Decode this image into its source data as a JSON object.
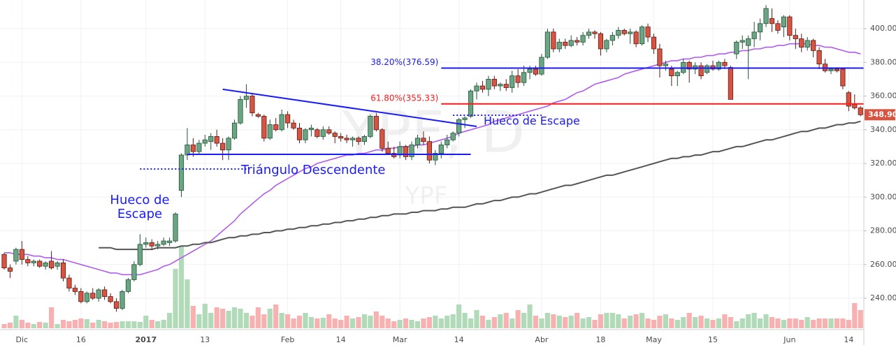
{
  "chart_data": {
    "type": "candlestick",
    "watermark": "YPF, D",
    "watermark_symbol": "YPF",
    "categories": [
      null,
      null,
      null,
      "Dic",
      null,
      null,
      null,
      null,
      null,
      null,
      null,
      null,
      null,
      "16",
      null,
      null,
      null,
      null,
      null,
      null,
      null,
      null,
      null,
      null,
      "2017",
      null,
      null,
      null,
      null,
      null,
      null,
      null,
      null,
      null,
      "13",
      null,
      null,
      null,
      null,
      null,
      null,
      null,
      null,
      null,
      null,
      null,
      null,
      null,
      "Feb",
      null,
      null,
      null,
      null,
      null,
      null,
      null,
      null,
      "14",
      null,
      null,
      null,
      null,
      null,
      null,
      null,
      null,
      null,
      "Mar",
      null,
      null,
      null,
      null,
      null,
      null,
      null,
      null,
      null,
      "14",
      null,
      null,
      null,
      null,
      null,
      null,
      null,
      null,
      null,
      null,
      null,
      null,
      null,
      "Abr",
      null,
      null,
      null,
      null,
      null,
      null,
      null,
      null,
      null,
      "18",
      null,
      null,
      null,
      null,
      null,
      null,
      null,
      null,
      "May",
      null,
      null,
      null,
      null,
      null,
      null,
      null,
      null,
      null,
      "15",
      null,
      null,
      null,
      null,
      null,
      null,
      null,
      null,
      null,
      null,
      null,
      null,
      "Jun",
      null,
      null,
      null,
      null,
      null,
      null,
      null,
      null,
      null,
      "14",
      null,
      null
    ],
    "open": [
      266,
      258,
      262,
      269,
      263,
      261,
      262,
      259,
      262,
      259,
      261,
      252,
      246,
      244,
      238,
      243,
      240,
      245,
      241,
      238,
      234,
      244,
      251,
      260,
      272,
      273,
      271,
      272,
      273,
      274,
      304,
      325,
      331,
      327,
      332,
      333,
      336,
      332,
      328,
      335,
      344,
      358,
      360,
      349,
      348,
      335,
      343,
      340,
      349,
      344,
      341,
      334,
      340,
      340,
      336,
      340,
      338,
      336,
      335,
      334,
      335,
      333,
      336,
      348,
      340,
      329,
      326,
      325,
      330,
      324,
      331,
      335,
      333,
      322,
      326,
      331,
      334,
      338,
      346,
      348,
      363,
      366,
      364,
      370,
      366,
      367,
      365,
      372,
      368,
      374,
      376,
      373,
      383,
      398,
      388,
      392,
      390,
      393,
      392,
      396,
      398,
      397,
      388,
      393,
      396,
      399,
      397,
      398,
      391,
      401,
      395,
      388,
      378,
      376,
      372,
      374,
      380,
      376,
      378,
      374,
      378,
      376,
      380,
      377,
      385,
      392,
      390,
      394,
      398,
      403,
      406,
      403,
      401,
      407,
      396,
      394,
      389,
      393,
      387,
      379,
      375,
      376,
      376,
      362,
      355,
      353
    ],
    "high": [
      267,
      260,
      270,
      274,
      265,
      263,
      263,
      262,
      268,
      262,
      263,
      254,
      248,
      246,
      244,
      246,
      246,
      247,
      243,
      240,
      245,
      252,
      262,
      278,
      276,
      275,
      274,
      276,
      276,
      291,
      326,
      341,
      335,
      334,
      337,
      338,
      340,
      335,
      336,
      346,
      360,
      367,
      361,
      350,
      349,
      346,
      347,
      352,
      351,
      346,
      344,
      341,
      343,
      341,
      342,
      342,
      339,
      338,
      337,
      336,
      336,
      337,
      349,
      350,
      341,
      333,
      330,
      333,
      331,
      333,
      337,
      339,
      336,
      328,
      333,
      337,
      339,
      347,
      348,
      364,
      368,
      369,
      372,
      372,
      368,
      370,
      375,
      376,
      378,
      378,
      378,
      385,
      400,
      400,
      394,
      394,
      396,
      395,
      398,
      400,
      399,
      398,
      394,
      398,
      401,
      400,
      400,
      399,
      402,
      403,
      397,
      391,
      381,
      378,
      375,
      382,
      381,
      380,
      380,
      379,
      381,
      381,
      382,
      378,
      393,
      396,
      396,
      404,
      406,
      414,
      412,
      405,
      408,
      408,
      400,
      397,
      395,
      394,
      389,
      382,
      377,
      377,
      377,
      363,
      361,
      354
    ],
    "low": [
      257,
      252,
      260,
      260,
      259,
      259,
      258,
      257,
      257,
      257,
      250,
      244,
      242,
      237,
      237,
      239,
      238,
      239,
      237,
      232,
      233,
      243,
      250,
      259,
      270,
      269,
      269,
      271,
      271,
      273,
      300,
      322,
      324,
      325,
      330,
      328,
      330,
      322,
      322,
      334,
      343,
      353,
      348,
      347,
      333,
      334,
      339,
      339,
      341,
      340,
      332,
      332,
      336,
      335,
      334,
      337,
      332,
      333,
      332,
      330,
      331,
      331,
      335,
      339,
      327,
      325,
      323,
      323,
      322,
      322,
      329,
      331,
      320,
      319,
      323,
      329,
      333,
      336,
      341,
      347,
      358,
      362,
      360,
      364,
      363,
      363,
      362,
      365,
      366,
      370,
      372,
      372,
      382,
      386,
      386,
      388,
      389,
      390,
      390,
      394,
      394,
      384,
      386,
      390,
      394,
      396,
      391,
      389,
      390,
      392,
      385,
      371,
      375,
      366,
      366,
      373,
      368,
      373,
      370,
      373,
      375,
      375,
      376,
      358,
      382,
      388,
      370,
      389,
      393,
      401,
      398,
      397,
      395,
      393,
      388,
      386,
      387,
      383,
      376,
      374,
      373,
      374,
      364,
      351,
      352,
      348
    ],
    "close": [
      258,
      256,
      269,
      263,
      261,
      262,
      259,
      261,
      258,
      261,
      252,
      246,
      244,
      238,
      243,
      240,
      245,
      241,
      238,
      234,
      244,
      251,
      260,
      272,
      273,
      271,
      272,
      274,
      274,
      290,
      325,
      331,
      327,
      332,
      334,
      336,
      332,
      328,
      335,
      344,
      358,
      360,
      350,
      348,
      335,
      343,
      340,
      349,
      344,
      341,
      334,
      340,
      341,
      336,
      340,
      338,
      336,
      335,
      334,
      335,
      333,
      336,
      348,
      340,
      329,
      326,
      324,
      330,
      324,
      331,
      335,
      333,
      322,
      326,
      331,
      334,
      338,
      346,
      347,
      363,
      366,
      364,
      370,
      366,
      367,
      365,
      372,
      368,
      374,
      376,
      373,
      383,
      398,
      388,
      392,
      390,
      393,
      392,
      396,
      398,
      397,
      388,
      393,
      396,
      399,
      397,
      398,
      391,
      401,
      395,
      388,
      378,
      379,
      372,
      374,
      380,
      376,
      378,
      372,
      378,
      376,
      380,
      378,
      358,
      392,
      393,
      394,
      398,
      403,
      412,
      403,
      399,
      407,
      396,
      394,
      389,
      393,
      387,
      379,
      375,
      376,
      375,
      366,
      354,
      353,
      348.9
    ],
    "volume": [
      6,
      8,
      18,
      12,
      8,
      6,
      9,
      8,
      30,
      6,
      12,
      10,
      12,
      14,
      13,
      8,
      12,
      10,
      8,
      9,
      10,
      10,
      10,
      9,
      18,
      12,
      10,
      12,
      22,
      85,
      118,
      70,
      32,
      20,
      35,
      22,
      30,
      28,
      25,
      30,
      28,
      22,
      18,
      30,
      20,
      28,
      34,
      22,
      20,
      14,
      18,
      22,
      16,
      14,
      15,
      20,
      14,
      12,
      18,
      14,
      16,
      20,
      18,
      24,
      18,
      14,
      10,
      12,
      14,
      12,
      10,
      14,
      16,
      18,
      14,
      18,
      20,
      34,
      22,
      14,
      26,
      18,
      12,
      16,
      20,
      22,
      14,
      26,
      22,
      34,
      18,
      14,
      22,
      20,
      18,
      16,
      18,
      22,
      14,
      16,
      12,
      20,
      22,
      22,
      20,
      14,
      18,
      20,
      22,
      14,
      12,
      18,
      20,
      14,
      12,
      16,
      22,
      16,
      18,
      14,
      12,
      14,
      20,
      16,
      10,
      14,
      20,
      22,
      14,
      20,
      16,
      14,
      12,
      14,
      14,
      12,
      16,
      12,
      14,
      14,
      14,
      14,
      14,
      12,
      36,
      26
    ],
    "up_color": "#6ba583",
    "down_color": "#d75442",
    "moving_averages": [
      {
        "color": "#b05cf0",
        "values": [
          267,
          267,
          266,
          266,
          266,
          265,
          265,
          264,
          264,
          263,
          263,
          262,
          261,
          260,
          259,
          258,
          257,
          256,
          255,
          255,
          254,
          254,
          254,
          254,
          255,
          256,
          257,
          259,
          260,
          262,
          264,
          266,
          268,
          270,
          272,
          274,
          277,
          280,
          283,
          286,
          290,
          293,
          296,
          299,
          302,
          304,
          307,
          309,
          311,
          313,
          315,
          317,
          318,
          320,
          321,
          322,
          323,
          324,
          325,
          325,
          326,
          326,
          327,
          328,
          328,
          329,
          329,
          330,
          330,
          330,
          331,
          331,
          332,
          333,
          334,
          335,
          336,
          338,
          339,
          340,
          341,
          342,
          343,
          345,
          346,
          347,
          348,
          349,
          350,
          351,
          352,
          353,
          354,
          356,
          357,
          358,
          360,
          362,
          363,
          365,
          367,
          368,
          369,
          370,
          371,
          373,
          374,
          375,
          376,
          377,
          378,
          379,
          380,
          381,
          381,
          382,
          382,
          383,
          383,
          384,
          384,
          385,
          385,
          386,
          386,
          387,
          387,
          388,
          388,
          389,
          389,
          390,
          390,
          391,
          391,
          391,
          391,
          390,
          390,
          389,
          389,
          388,
          387,
          386,
          386,
          385
        ]
      },
      {
        "color": "#555555",
        "values": [
          null,
          null,
          null,
          null,
          null,
          null,
          null,
          null,
          null,
          null,
          null,
          null,
          null,
          null,
          null,
          null,
          270,
          270,
          270,
          269,
          269,
          269,
          269,
          269,
          269,
          269,
          270,
          270,
          270,
          270,
          271,
          271,
          272,
          272,
          273,
          273,
          274,
          275,
          276,
          276,
          277,
          277,
          278,
          278,
          279,
          279,
          280,
          280,
          281,
          281,
          282,
          282,
          283,
          283,
          284,
          284,
          285,
          285,
          286,
          286,
          287,
          287,
          288,
          288,
          289,
          289,
          290,
          290,
          290,
          291,
          291,
          292,
          292,
          292,
          293,
          293,
          294,
          294,
          294,
          295,
          296,
          296,
          297,
          298,
          298,
          299,
          300,
          300,
          301,
          302,
          302,
          303,
          304,
          305,
          306,
          307,
          307,
          308,
          309,
          310,
          311,
          312,
          313,
          313,
          314,
          315,
          316,
          317,
          318,
          319,
          320,
          321,
          322,
          323,
          323,
          324,
          324,
          325,
          325,
          326,
          327,
          327,
          328,
          329,
          330,
          330,
          331,
          332,
          333,
          334,
          334,
          335,
          336,
          337,
          338,
          339,
          339,
          340,
          341,
          341,
          342,
          343,
          343,
          344,
          344,
          345
        ]
      }
    ],
    "levels": [
      {
        "value": 376.59,
        "label": "38.20%(376.59)",
        "color": "#1a1aff",
        "from": 74
      },
      {
        "value": 355.33,
        "label": "61.80%(355.33)",
        "color": "#ff1a1a",
        "from": 74
      }
    ],
    "trendlines": [
      {
        "x": [
          37,
          80
        ],
        "values": [
          364,
          342
        ],
        "color": "#1a1aff",
        "dotted": false
      },
      {
        "x": [
          31,
          79
        ],
        "values": [
          325.4,
          325.4
        ],
        "color": "#1a1aff",
        "dotted": false
      },
      {
        "x": [
          23,
          41
        ],
        "values": [
          316.7,
          316.7
        ],
        "color": "#1a1aff",
        "dotted": true
      },
      {
        "x": [
          76,
          91
        ],
        "values": [
          348.6,
          348.6
        ],
        "color": "#1a1aff",
        "dotted": true
      }
    ],
    "annotations": [
      {
        "lines": [
          "Triángulo Descendente"
        ]
      },
      {
        "lines": [
          "Hueco de",
          "Escape"
        ]
      },
      {
        "lines": [
          "Hueco de Escape"
        ]
      }
    ],
    "last_price_label": "348.90",
    "ylim": [
      222.2,
      417
    ],
    "yticks": [
      {
        "value": 240,
        "label": "240.00"
      },
      {
        "value": 260,
        "label": "260.00"
      },
      {
        "value": 280,
        "label": "280.00"
      },
      {
        "value": 300,
        "label": "300.00"
      },
      {
        "value": 320,
        "label": "320.00"
      },
      {
        "value": 340,
        "label": "340.00"
      },
      {
        "value": 360,
        "label": "360.00"
      },
      {
        "value": 380,
        "label": "380.00"
      },
      {
        "value": 400,
        "label": "400.00"
      }
    ],
    "grid": true
  }
}
